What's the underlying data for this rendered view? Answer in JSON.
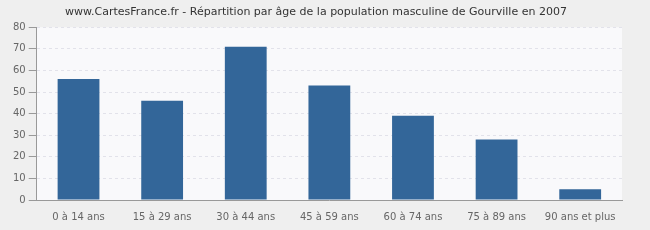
{
  "chart_data": {
    "type": "bar",
    "title": "www.CartesFrance.fr - Répartition par âge de la population masculine de Gourville en 2007",
    "categories": [
      "0 à 14 ans",
      "15 à 29 ans",
      "30 à 44 ans",
      "45 à 59 ans",
      "60 à 74 ans",
      "75 à 89 ans",
      "90 ans et plus"
    ],
    "values": [
      56,
      46,
      71,
      53,
      39,
      28,
      5
    ],
    "color": "#336699",
    "ylim": [
      0,
      80
    ],
    "yticks": [
      0,
      10,
      20,
      30,
      40,
      50,
      60,
      70,
      80
    ],
    "grid": true
  }
}
